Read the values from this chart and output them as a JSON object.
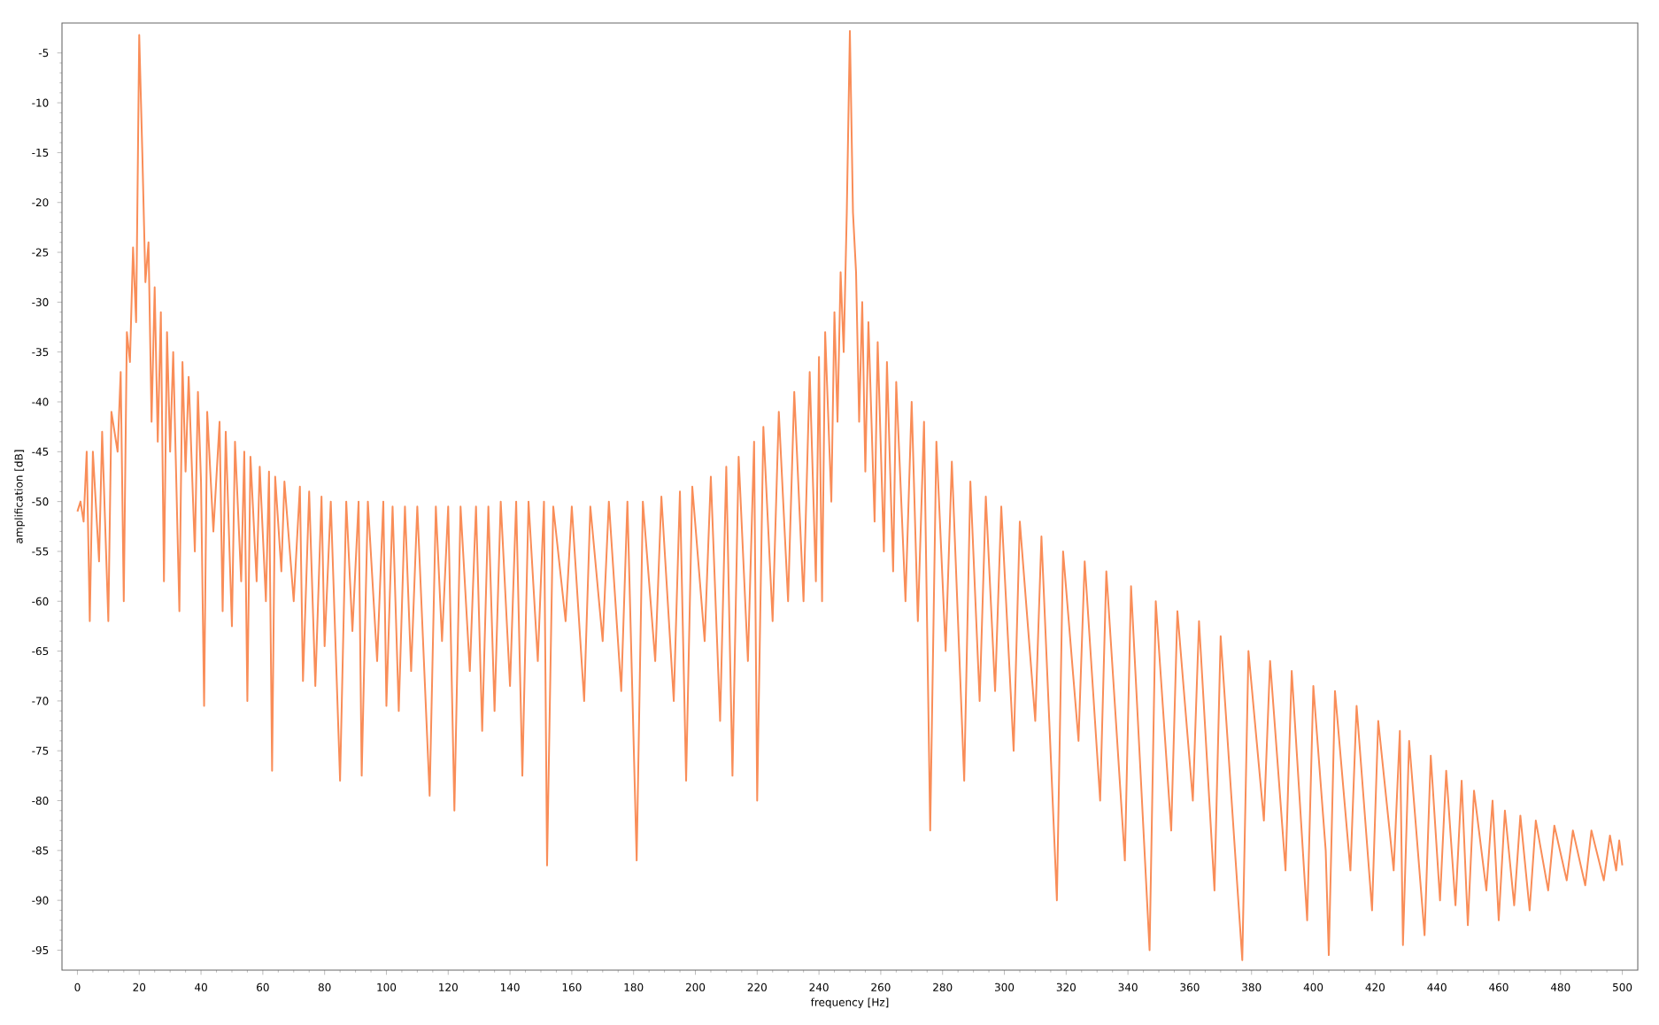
{
  "chart_data": {
    "type": "line",
    "xlabel": "frequency [Hz]",
    "ylabel": "amplification [dB]",
    "xlim": [
      -5,
      505
    ],
    "ylim": [
      -97,
      -2
    ],
    "xticks": [
      0,
      20,
      40,
      60,
      80,
      100,
      120,
      140,
      160,
      180,
      200,
      220,
      240,
      260,
      280,
      300,
      320,
      340,
      360,
      380,
      400,
      420,
      440,
      460,
      480,
      500
    ],
    "yticks": [
      -95,
      -90,
      -85,
      -80,
      -75,
      -70,
      -65,
      -60,
      -55,
      -50,
      -45,
      -40,
      -35,
      -30,
      -25,
      -20,
      -15,
      -10,
      -5
    ],
    "grid": false,
    "marker": "none",
    "line_style": "solid",
    "series": [
      {
        "color": "#f98d58",
        "x": [
          0,
          1,
          2,
          3,
          4,
          5,
          7,
          8,
          10,
          11,
          13,
          14,
          15,
          16,
          17,
          18,
          19,
          20,
          21,
          22,
          23,
          24,
          25,
          26,
          27,
          28,
          29,
          30,
          31,
          33,
          34,
          35,
          36,
          38,
          39,
          40,
          41,
          42,
          44,
          46,
          47,
          48,
          50,
          51,
          53,
          54,
          55,
          56,
          58,
          59,
          61,
          62,
          63,
          64,
          66,
          67,
          70,
          72,
          73,
          75,
          77,
          79,
          80,
          82,
          85,
          87,
          89,
          91,
          92,
          94,
          97,
          99,
          100,
          102,
          104,
          106,
          108,
          110,
          114,
          116,
          118,
          120,
          122,
          124,
          127,
          129,
          131,
          133,
          135,
          137,
          140,
          142,
          144,
          146,
          149,
          151,
          152,
          154,
          158,
          160,
          164,
          166,
          170,
          172,
          176,
          178,
          181,
          183,
          187,
          189,
          193,
          195,
          197,
          199,
          203,
          205,
          208,
          210,
          212,
          214,
          217,
          219,
          220,
          222,
          225,
          227,
          230,
          232,
          235,
          237,
          239,
          240,
          241,
          242,
          244,
          245,
          246,
          247,
          248,
          249,
          250,
          251,
          252,
          253,
          254,
          255,
          256,
          258,
          259,
          261,
          262,
          264,
          265,
          268,
          270,
          272,
          274,
          276,
          278,
          281,
          283,
          287,
          289,
          292,
          294,
          297,
          299,
          303,
          305,
          310,
          312,
          317,
          319,
          324,
          326,
          331,
          333,
          339,
          341,
          347,
          349,
          354,
          356,
          361,
          363,
          368,
          370,
          377,
          379,
          384,
          386,
          391,
          393,
          398,
          400,
          404,
          405,
          407,
          412,
          414,
          419,
          421,
          426,
          428,
          429,
          431,
          436,
          438,
          441,
          443,
          446,
          448,
          450,
          452,
          456,
          458,
          460,
          462,
          465,
          467,
          470,
          472,
          476,
          478,
          482,
          484,
          488,
          490,
          494,
          496,
          498,
          499,
          500
        ],
        "values": [
          -51,
          -50,
          -52,
          -45,
          -62,
          -45,
          -56,
          -43,
          -62,
          -41,
          -45,
          -37,
          -60,
          -33,
          -36,
          -24.5,
          -32,
          -3.2,
          -15,
          -28,
          -24,
          -42,
          -28.5,
          -44,
          -31,
          -58,
          -33,
          -45,
          -35,
          -61,
          -36,
          -47,
          -37.5,
          -55,
          -39,
          -48,
          -70.5,
          -41,
          -53,
          -42,
          -61,
          -43,
          -62.5,
          -44,
          -58,
          -45,
          -70,
          -45.5,
          -58,
          -46.5,
          -60,
          -47,
          -77,
          -47.5,
          -57,
          -48,
          -60,
          -48.5,
          -68,
          -49,
          -68.5,
          -49.5,
          -64.5,
          -50,
          -78,
          -50,
          -63,
          -50,
          -77.5,
          -50,
          -66,
          -50,
          -70.5,
          -50.5,
          -71,
          -50.5,
          -67,
          -50.5,
          -79.5,
          -50.5,
          -64,
          -50.5,
          -81,
          -50.5,
          -67,
          -50.5,
          -73,
          -50.5,
          -71,
          -50,
          -68.5,
          -50,
          -77.5,
          -50,
          -66,
          -50,
          -86.5,
          -50.5,
          -62,
          -50.5,
          -70,
          -50.5,
          -64,
          -50,
          -69,
          -50,
          -86,
          -50,
          -66,
          -49.5,
          -70,
          -49,
          -78,
          -48.5,
          -64,
          -47.5,
          -72,
          -46.5,
          -77.5,
          -45.5,
          -66,
          -44,
          -80,
          -42.5,
          -62,
          -41,
          -60,
          -39,
          -60,
          -37,
          -58,
          -35.5,
          -60,
          -33,
          -50,
          -31,
          -42,
          -27,
          -35,
          -21,
          -2.8,
          -21,
          -27,
          -42,
          -30,
          -47,
          -32,
          -52,
          -34,
          -55,
          -36,
          -57,
          -38,
          -60,
          -40,
          -62,
          -42,
          -83,
          -44,
          -65,
          -46,
          -78,
          -48,
          -70,
          -49.5,
          -69,
          -50.5,
          -75,
          -52,
          -72,
          -53.5,
          -90,
          -55,
          -74,
          -56,
          -80,
          -57,
          -86,
          -58.5,
          -95,
          -60,
          -83,
          -61,
          -80,
          -62,
          -89,
          -63.5,
          -96,
          -65,
          -82,
          -66,
          -87,
          -67,
          -92,
          -68.5,
          -85,
          -95.5,
          -69,
          -87,
          -70.5,
          -91,
          -72,
          -87,
          -73,
          -94.5,
          -74,
          -93.5,
          -75.5,
          -90,
          -77,
          -90.5,
          -78,
          -92.5,
          -79,
          -89,
          -80,
          -92,
          -81,
          -90.5,
          -81.5,
          -91,
          -82,
          -89,
          -82.5,
          -88,
          -83,
          -88.5,
          -83,
          -88,
          -83.5,
          -87,
          -84,
          -86.5
        ]
      }
    ]
  }
}
